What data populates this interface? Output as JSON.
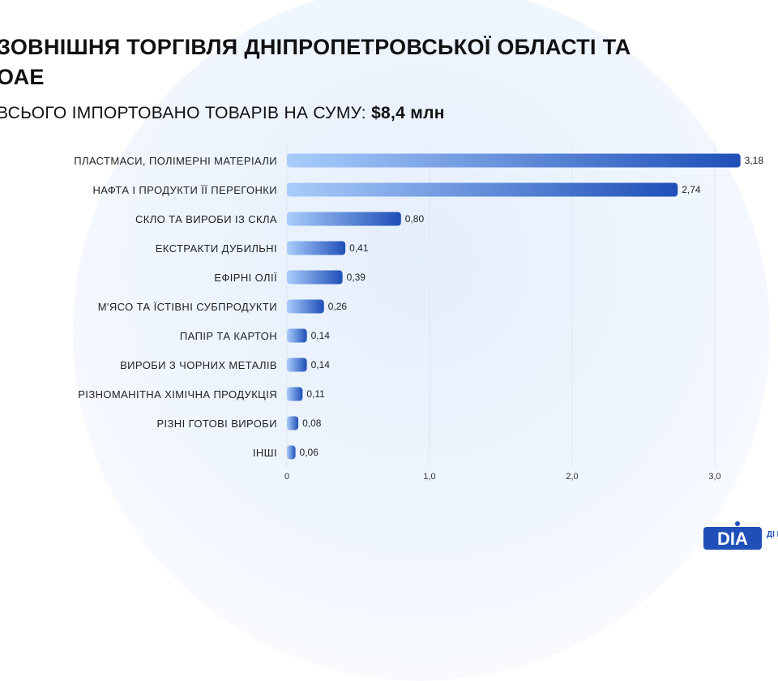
{
  "title": "ЗОВНІШНЯ ТОРГІВЛЯ ДНІПРОПЕТРОВСЬКОЇ ОБЛАСТІ ТА\nОАЕ",
  "subtitle": {
    "text": "ВСЬОГО ІМПОРТОВАНО ТОВАРІВ НА СУМУ:",
    "amount": "$8,4 млн"
  },
  "colors": {
    "bar_start": "#a9cdfb",
    "bar_end": "#1f4fb8",
    "logo_blue": "#1f4fb8"
  },
  "logo": {
    "text": "DIA",
    "side_text": "ДІ ІН"
  },
  "chart_data": {
    "type": "bar",
    "orientation": "horizontal",
    "categories": [
      "ПЛАСТМАСИ, ПОЛІМЕРНІ МАТЕРІАЛИ",
      "НАФТА І ПРОДУКТИ ЇЇ ПЕРЕГОНКИ",
      "СКЛО ТА ВИРОБИ ІЗ СКЛА",
      "ЕКСТРАКТИ ДУБИЛЬНІ",
      "ЕФІРНІ ОЛІЇ",
      "М'ЯСО ТА ЇСТІВНІ СУБПРОДУКТИ",
      "ПАПІР ТА КАРТОН",
      "ВИРОБИ З ЧОРНИХ МЕТАЛІВ",
      "РІЗНОМАНІТНА ХІМІЧНА ПРОДУКЦІЯ",
      "РІЗНІ ГОТОВІ ВИРОБИ",
      "ІНШІ"
    ],
    "values": [
      3.18,
      2.74,
      0.8,
      0.41,
      0.39,
      0.26,
      0.14,
      0.14,
      0.11,
      0.08,
      0.06
    ],
    "value_labels": [
      "3,18",
      "2,74",
      "0,80",
      "0,41",
      "0,39",
      "0,26",
      "0,14",
      "0,14",
      "0,11",
      "0,08",
      "0,06"
    ],
    "xlim": [
      0,
      3.2
    ],
    "xticks": [
      0,
      1.0,
      2.0,
      3.0
    ],
    "xtick_labels": [
      "0",
      "1,0",
      "2,0",
      "3,0"
    ],
    "grid": true
  }
}
